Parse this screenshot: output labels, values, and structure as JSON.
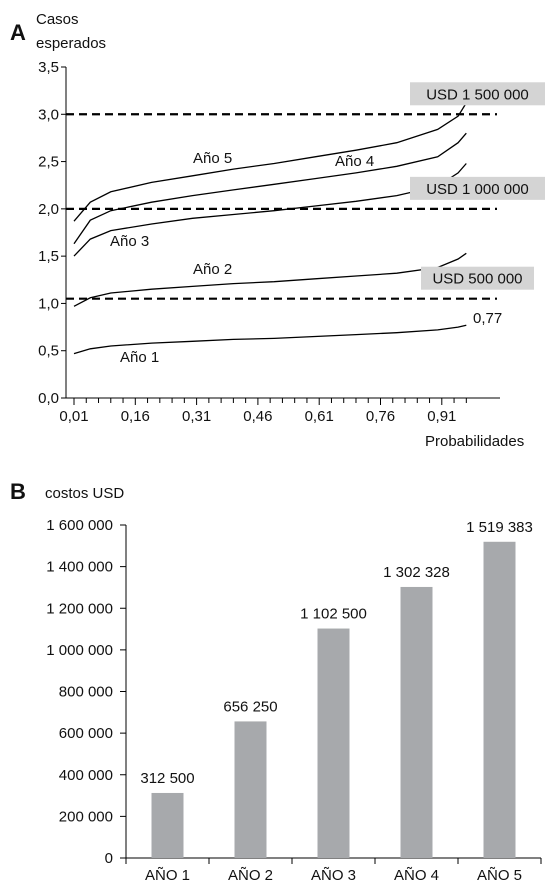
{
  "chart_data": [
    {
      "panel": "A",
      "type": "line",
      "ylabel": "Casos esperados",
      "xlabel": "Probabilidades",
      "xlim": [
        0.0,
        1.0
      ],
      "ylim": [
        0.0,
        3.5
      ],
      "x_ticks": [
        "0,01",
        "0,16",
        "0,31",
        "0,46",
        "0,61",
        "0,76",
        "0,91"
      ],
      "y_ticks": [
        "0,0",
        "0,5",
        "1,0",
        "1,5",
        "2,0",
        "2,5",
        "3,0",
        "3,5"
      ],
      "series": [
        {
          "name": "Año 1",
          "x": [
            0.01,
            0.05,
            0.1,
            0.2,
            0.3,
            0.4,
            0.5,
            0.6,
            0.7,
            0.8,
            0.9,
            0.95,
            0.97
          ],
          "y": [
            0.47,
            0.52,
            0.55,
            0.58,
            0.6,
            0.62,
            0.63,
            0.65,
            0.67,
            0.69,
            0.72,
            0.75,
            0.77
          ]
        },
        {
          "name": "Año 2",
          "x": [
            0.01,
            0.05,
            0.1,
            0.2,
            0.3,
            0.4,
            0.5,
            0.6,
            0.7,
            0.8,
            0.9,
            0.95,
            0.97
          ],
          "y": [
            0.97,
            1.06,
            1.11,
            1.15,
            1.18,
            1.21,
            1.23,
            1.26,
            1.29,
            1.32,
            1.38,
            1.47,
            1.53
          ]
        },
        {
          "name": "Año 3",
          "x": [
            0.01,
            0.05,
            0.1,
            0.2,
            0.3,
            0.4,
            0.5,
            0.6,
            0.7,
            0.8,
            0.9,
            0.95,
            0.97
          ],
          "y": [
            1.5,
            1.68,
            1.77,
            1.84,
            1.9,
            1.94,
            1.98,
            2.03,
            2.08,
            2.14,
            2.24,
            2.38,
            2.48
          ]
        },
        {
          "name": "Año 4",
          "x": [
            0.01,
            0.05,
            0.1,
            0.2,
            0.3,
            0.4,
            0.5,
            0.6,
            0.7,
            0.8,
            0.9,
            0.95,
            0.97
          ],
          "y": [
            1.63,
            1.88,
            1.98,
            2.07,
            2.14,
            2.2,
            2.26,
            2.32,
            2.38,
            2.45,
            2.55,
            2.7,
            2.8
          ]
        },
        {
          "name": "Año 5",
          "x": [
            0.01,
            0.05,
            0.1,
            0.2,
            0.3,
            0.4,
            0.5,
            0.6,
            0.7,
            0.8,
            0.9,
            0.95,
            0.97
          ],
          "y": [
            1.87,
            2.07,
            2.18,
            2.28,
            2.35,
            2.42,
            2.48,
            2.55,
            2.62,
            2.7,
            2.84,
            2.98,
            3.12
          ]
        }
      ],
      "thresholds": [
        {
          "label": "USD 1 500 000",
          "y": 3.0
        },
        {
          "label": "USD 1 000 000",
          "y": 2.0
        },
        {
          "label": "USD 500 000",
          "y": 1.05
        }
      ],
      "annotations": [
        {
          "text": "0,77"
        }
      ]
    },
    {
      "panel": "B",
      "type": "bar",
      "ylabel": "costos USD",
      "categories": [
        "AÑO 1",
        "AÑO 2",
        "AÑO 3",
        "AÑO 4",
        "AÑO 5"
      ],
      "values": [
        312500,
        656250,
        1102500,
        1302328,
        1519383
      ],
      "value_labels": [
        "312 500",
        "656 250",
        "1 102 500",
        "1 302 328",
        "1 519 383"
      ],
      "ylim": [
        0,
        1600000
      ],
      "y_ticks": [
        "0",
        "200 000",
        "400 000",
        "600 000",
        "800 000",
        "1 000 000",
        "1 200 000",
        "1 400 000",
        "1 600 000"
      ],
      "bar_color": "#a7a9ac"
    }
  ]
}
